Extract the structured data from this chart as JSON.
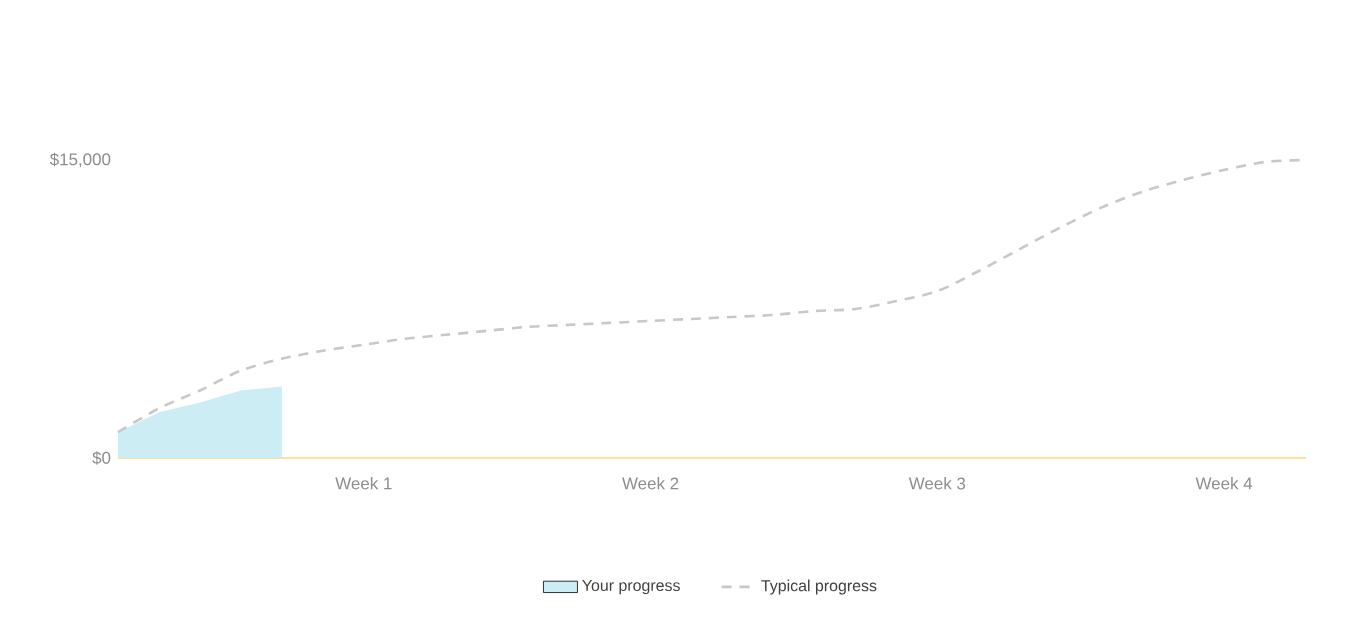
{
  "chart_data": {
    "type": "line",
    "categories": [
      null,
      null,
      null,
      null,
      null,
      null,
      "Week 1",
      null,
      null,
      null,
      null,
      null,
      null,
      "Week 2",
      null,
      null,
      null,
      null,
      null,
      null,
      "Week 3",
      null,
      null,
      null,
      null,
      null,
      null,
      "Week 4",
      null,
      null
    ],
    "ylim": [
      0,
      15000
    ],
    "yticks": [
      {
        "value": 0,
        "label": "$0"
      },
      {
        "value": 15000,
        "label": "$15,000"
      }
    ],
    "legend": "bottom",
    "series": [
      {
        "name": "Your progress",
        "type": "area",
        "color": "#cdedf5",
        "values": [
          1300,
          2300,
          2800,
          3400,
          3600,
          null,
          null,
          null,
          null,
          null,
          null,
          null,
          null,
          null,
          null,
          null,
          null,
          null,
          null,
          null,
          null,
          null,
          null,
          null,
          null,
          null,
          null,
          null,
          null,
          null
        ]
      },
      {
        "name": "Typical progress",
        "line_style": "dashed",
        "color": "#c8c8c8",
        "values": [
          1300,
          2500,
          3400,
          4400,
          5000,
          5400,
          5700,
          6000,
          6200,
          6400,
          6600,
          6700,
          6800,
          6900,
          7000,
          7100,
          7200,
          7400,
          7500,
          7900,
          8400,
          9400,
          10500,
          11600,
          12600,
          13400,
          14000,
          14500,
          14900,
          15000
        ]
      }
    ]
  }
}
